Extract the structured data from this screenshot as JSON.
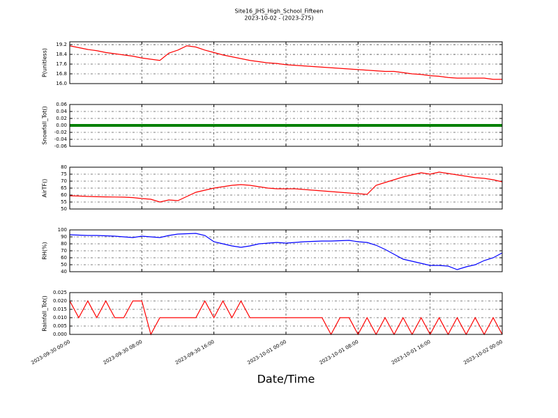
{
  "title": "Site16_JHS_High_School_Fifteen",
  "subtitle": "2023-10-02 - (2023-275)",
  "xlabel": "Date/Time",
  "chart_data": [
    {
      "type": "line",
      "ylabel": "P(unitless)",
      "ylim": [
        16.0,
        19.43
      ],
      "yticks": [
        {
          "value": 16,
          "label": "16.0"
        },
        {
          "value": 16.8,
          "label": "16.8"
        },
        {
          "value": 17.6,
          "label": "17.6"
        },
        {
          "value": 18.4,
          "label": "18.4"
        },
        {
          "value": 19.2,
          "label": "19.2"
        }
      ],
      "grid": true,
      "xlim": [
        "2023-09-30 00:00",
        "2023-10-02 00:00"
      ],
      "xticks": [
        "2023-09-30 00:00",
        "2023-09-30 08:00",
        "2023-09-30 16:00",
        "2023-10-01 00:00",
        "2023-10-01 08:00",
        "2023-10-01 16:00",
        "2023-10-02 00:00"
      ],
      "x": [
        "2023-09-30 00:00",
        "2023-09-30 01:00",
        "2023-09-30 02:00",
        "2023-09-30 03:00",
        "2023-09-30 04:00",
        "2023-09-30 05:00",
        "2023-09-30 06:00",
        "2023-09-30 07:00",
        "2023-09-30 08:00",
        "2023-09-30 09:00",
        "2023-09-30 10:00",
        "2023-09-30 11:00",
        "2023-09-30 12:00",
        "2023-09-30 13:00",
        "2023-09-30 14:00",
        "2023-09-30 15:00",
        "2023-09-30 16:00",
        "2023-09-30 17:00",
        "2023-09-30 18:00",
        "2023-09-30 19:00",
        "2023-09-30 20:00",
        "2023-09-30 21:00",
        "2023-09-30 22:00",
        "2023-09-30 23:00",
        "2023-10-01 00:00",
        "2023-10-01 01:00",
        "2023-10-01 02:00",
        "2023-10-01 03:00",
        "2023-10-01 04:00",
        "2023-10-01 05:00",
        "2023-10-01 06:00",
        "2023-10-01 07:00",
        "2023-10-01 08:00",
        "2023-10-01 09:00",
        "2023-10-01 10:00",
        "2023-10-01 11:00",
        "2023-10-01 12:00",
        "2023-10-01 13:00",
        "2023-10-01 14:00",
        "2023-10-01 15:00",
        "2023-10-01 16:00",
        "2023-10-01 17:00",
        "2023-10-01 18:00",
        "2023-10-01 19:00",
        "2023-10-01 20:00",
        "2023-10-01 21:00",
        "2023-10-01 22:00",
        "2023-10-01 23:00",
        "2023-10-02 00:00"
      ],
      "series": [
        {
          "color": "#ff0000",
          "values": [
            19.1,
            18.95,
            18.8,
            18.7,
            18.55,
            18.45,
            18.35,
            18.25,
            18.1,
            18.0,
            17.9,
            18.5,
            18.75,
            19.1,
            19.0,
            18.75,
            18.55,
            18.35,
            18.2,
            18.05,
            17.9,
            17.8,
            17.7,
            17.65,
            17.55,
            17.5,
            17.45,
            17.4,
            17.35,
            17.3,
            17.25,
            17.2,
            17.15,
            17.1,
            17.05,
            17.0,
            17.0,
            16.9,
            16.8,
            16.75,
            16.65,
            16.6,
            16.5,
            16.45,
            16.45,
            16.45,
            16.45,
            16.35,
            16.35
          ]
        }
      ]
    },
    {
      "type": "line",
      "ylabel": "Snowfall_Tot()",
      "ylim": [
        -0.06,
        0.06
      ],
      "yticks": [
        -0.06,
        -0.04,
        -0.02,
        {
          "value": 0,
          "label": "0.00"
        },
        0.02,
        0.04,
        0.06
      ],
      "grid": true,
      "xlim": [
        "2023-09-30 00:00",
        "2023-10-02 00:00"
      ],
      "xticks": [
        "2023-09-30 00:00",
        "2023-09-30 08:00",
        "2023-09-30 16:00",
        "2023-10-01 00:00",
        "2023-10-01 08:00",
        "2023-10-01 16:00",
        "2023-10-02 00:00"
      ],
      "x": [
        "2023-09-30 00:00",
        "2023-09-30 01:00",
        "2023-09-30 02:00",
        "2023-09-30 03:00",
        "2023-09-30 04:00",
        "2023-09-30 05:00",
        "2023-09-30 06:00",
        "2023-09-30 07:00",
        "2023-09-30 08:00",
        "2023-09-30 09:00",
        "2023-09-30 10:00",
        "2023-09-30 11:00",
        "2023-09-30 12:00",
        "2023-09-30 13:00",
        "2023-09-30 14:00",
        "2023-09-30 15:00",
        "2023-09-30 16:00",
        "2023-09-30 17:00",
        "2023-09-30 18:00",
        "2023-09-30 19:00",
        "2023-09-30 20:00",
        "2023-09-30 21:00",
        "2023-09-30 22:00",
        "2023-09-30 23:00",
        "2023-10-01 00:00",
        "2023-10-01 01:00",
        "2023-10-01 02:00",
        "2023-10-01 03:00",
        "2023-10-01 04:00",
        "2023-10-01 05:00",
        "2023-10-01 06:00",
        "2023-10-01 07:00",
        "2023-10-01 08:00",
        "2023-10-01 09:00",
        "2023-10-01 10:00",
        "2023-10-01 11:00",
        "2023-10-01 12:00",
        "2023-10-01 13:00",
        "2023-10-01 14:00",
        "2023-10-01 15:00",
        "2023-10-01 16:00",
        "2023-10-01 17:00",
        "2023-10-01 18:00",
        "2023-10-01 19:00",
        "2023-10-01 20:00",
        "2023-10-01 21:00",
        "2023-10-01 22:00",
        "2023-10-01 23:00",
        "2023-10-02 00:00"
      ],
      "series": [
        {
          "color": "#008000",
          "values": [
            0,
            0,
            0,
            0,
            0,
            0,
            0,
            0,
            0,
            0,
            0,
            0,
            0,
            0,
            0,
            0,
            0,
            0,
            0,
            0,
            0,
            0,
            0,
            0,
            0,
            0,
            0,
            0,
            0,
            0,
            0,
            0,
            0,
            0,
            0,
            0,
            0,
            0,
            0,
            0,
            0,
            0,
            0,
            0,
            0,
            0,
            0,
            0,
            0
          ]
        }
      ]
    },
    {
      "type": "line",
      "ylabel": "AirTF()",
      "ylim": [
        50,
        80
      ],
      "yticks": [
        50,
        55,
        60,
        65,
        70,
        75,
        80
      ],
      "grid": true,
      "xlim": [
        "2023-09-30 00:00",
        "2023-10-02 00:00"
      ],
      "xticks": [
        "2023-09-30 00:00",
        "2023-09-30 08:00",
        "2023-09-30 16:00",
        "2023-10-01 00:00",
        "2023-10-01 08:00",
        "2023-10-01 16:00",
        "2023-10-02 00:00"
      ],
      "x": [
        "2023-09-30 00:00",
        "2023-09-30 01:00",
        "2023-09-30 02:00",
        "2023-09-30 03:00",
        "2023-09-30 04:00",
        "2023-09-30 05:00",
        "2023-09-30 06:00",
        "2023-09-30 07:00",
        "2023-09-30 08:00",
        "2023-09-30 09:00",
        "2023-09-30 10:00",
        "2023-09-30 11:00",
        "2023-09-30 12:00",
        "2023-09-30 13:00",
        "2023-09-30 14:00",
        "2023-09-30 15:00",
        "2023-09-30 16:00",
        "2023-09-30 17:00",
        "2023-09-30 18:00",
        "2023-09-30 19:00",
        "2023-09-30 20:00",
        "2023-09-30 21:00",
        "2023-09-30 22:00",
        "2023-09-30 23:00",
        "2023-10-01 00:00",
        "2023-10-01 01:00",
        "2023-10-01 02:00",
        "2023-10-01 03:00",
        "2023-10-01 04:00",
        "2023-10-01 05:00",
        "2023-10-01 06:00",
        "2023-10-01 07:00",
        "2023-10-01 08:00",
        "2023-10-01 09:00",
        "2023-10-01 10:00",
        "2023-10-01 11:00",
        "2023-10-01 12:00",
        "2023-10-01 13:00",
        "2023-10-01 14:00",
        "2023-10-01 15:00",
        "2023-10-01 16:00",
        "2023-10-01 17:00",
        "2023-10-01 18:00",
        "2023-10-01 19:00",
        "2023-10-01 20:00",
        "2023-10-01 21:00",
        "2023-10-01 22:00",
        "2023-10-01 23:00",
        "2023-10-02 00:00"
      ],
      "series": [
        {
          "color": "#ff0000",
          "values": [
            59.5,
            59.3,
            59,
            58.8,
            58.7,
            58.6,
            58.5,
            58.2,
            57.5,
            57,
            55,
            56.5,
            56,
            59,
            62,
            63.5,
            65,
            66,
            67,
            67.5,
            67,
            66,
            65,
            64.5,
            64.5,
            64.5,
            64,
            63.5,
            63,
            62.5,
            62,
            61.5,
            61,
            60.5,
            67,
            69,
            71,
            73,
            74.5,
            76,
            75,
            76.5,
            75.5,
            74.5,
            73.5,
            72.5,
            72,
            71,
            69.5
          ]
        }
      ]
    },
    {
      "type": "line",
      "ylabel": "RH(%)",
      "ylim": [
        40,
        100
      ],
      "yticks": [
        40,
        50,
        60,
        70,
        80,
        90,
        100
      ],
      "grid": true,
      "xlim": [
        "2023-09-30 00:00",
        "2023-10-02 00:00"
      ],
      "xticks": [
        "2023-09-30 00:00",
        "2023-09-30 08:00",
        "2023-09-30 16:00",
        "2023-10-01 00:00",
        "2023-10-01 08:00",
        "2023-10-01 16:00",
        "2023-10-02 00:00"
      ],
      "x": [
        "2023-09-30 00:00",
        "2023-09-30 01:00",
        "2023-09-30 02:00",
        "2023-09-30 03:00",
        "2023-09-30 04:00",
        "2023-09-30 05:00",
        "2023-09-30 06:00",
        "2023-09-30 07:00",
        "2023-09-30 08:00",
        "2023-09-30 09:00",
        "2023-09-30 10:00",
        "2023-09-30 11:00",
        "2023-09-30 12:00",
        "2023-09-30 13:00",
        "2023-09-30 14:00",
        "2023-09-30 15:00",
        "2023-09-30 16:00",
        "2023-09-30 17:00",
        "2023-09-30 18:00",
        "2023-09-30 19:00",
        "2023-09-30 20:00",
        "2023-09-30 21:00",
        "2023-09-30 22:00",
        "2023-09-30 23:00",
        "2023-10-01 00:00",
        "2023-10-01 01:00",
        "2023-10-01 02:00",
        "2023-10-01 03:00",
        "2023-10-01 04:00",
        "2023-10-01 05:00",
        "2023-10-01 06:00",
        "2023-10-01 07:00",
        "2023-10-01 08:00",
        "2023-10-01 09:00",
        "2023-10-01 10:00",
        "2023-10-01 11:00",
        "2023-10-01 12:00",
        "2023-10-01 13:00",
        "2023-10-01 14:00",
        "2023-10-01 15:00",
        "2023-10-01 16:00",
        "2023-10-01 17:00",
        "2023-10-01 18:00",
        "2023-10-01 19:00",
        "2023-10-01 20:00",
        "2023-10-01 21:00",
        "2023-10-01 22:00",
        "2023-10-01 23:00",
        "2023-10-02 00:00"
      ],
      "series": [
        {
          "color": "#0000ff",
          "values": [
            93,
            92.5,
            92,
            92,
            91.5,
            91,
            90,
            89,
            91,
            90,
            89,
            92,
            94,
            94.5,
            95,
            92,
            83,
            80,
            77,
            75,
            77,
            80,
            81,
            82,
            81,
            82,
            83,
            83.5,
            84,
            84,
            84.5,
            85,
            83,
            82,
            78,
            72,
            65,
            58,
            55,
            52,
            49,
            49,
            48,
            43,
            47,
            50,
            56,
            60,
            67
          ]
        }
      ]
    },
    {
      "type": "line",
      "ylabel": "Rainfall_Tot()",
      "ylim": [
        0,
        0.025
      ],
      "yticks": [
        {
          "value": 0,
          "label": "0.000"
        },
        {
          "value": 0.005,
          "label": "0.005"
        },
        {
          "value": 0.01,
          "label": "0.010"
        },
        {
          "value": 0.015,
          "label": "0.015"
        },
        {
          "value": 0.02,
          "label": "0.020"
        },
        {
          "value": 0.025,
          "label": "0.025"
        }
      ],
      "grid": true,
      "xlim": [
        "2023-09-30 00:00",
        "2023-10-02 00:00"
      ],
      "xticks": [
        "2023-09-30 00:00",
        "2023-09-30 08:00",
        "2023-09-30 16:00",
        "2023-10-01 00:00",
        "2023-10-01 08:00",
        "2023-10-01 16:00",
        "2023-10-02 00:00"
      ],
      "x": [
        "2023-09-30 00:00",
        "2023-09-30 01:00",
        "2023-09-30 02:00",
        "2023-09-30 03:00",
        "2023-09-30 04:00",
        "2023-09-30 05:00",
        "2023-09-30 06:00",
        "2023-09-30 07:00",
        "2023-09-30 08:00",
        "2023-09-30 09:00",
        "2023-09-30 10:00",
        "2023-09-30 11:00",
        "2023-09-30 12:00",
        "2023-09-30 13:00",
        "2023-09-30 14:00",
        "2023-09-30 15:00",
        "2023-09-30 16:00",
        "2023-09-30 17:00",
        "2023-09-30 18:00",
        "2023-09-30 19:00",
        "2023-09-30 20:00",
        "2023-09-30 21:00",
        "2023-09-30 22:00",
        "2023-09-30 23:00",
        "2023-10-01 00:00",
        "2023-10-01 01:00",
        "2023-10-01 02:00",
        "2023-10-01 03:00",
        "2023-10-01 04:00",
        "2023-10-01 05:00",
        "2023-10-01 06:00",
        "2023-10-01 07:00",
        "2023-10-01 08:00",
        "2023-10-01 09:00",
        "2023-10-01 10:00",
        "2023-10-01 11:00",
        "2023-10-01 12:00",
        "2023-10-01 13:00",
        "2023-10-01 14:00",
        "2023-10-01 15:00",
        "2023-10-01 16:00",
        "2023-10-01 17:00",
        "2023-10-01 18:00",
        "2023-10-01 19:00",
        "2023-10-01 20:00",
        "2023-10-01 21:00",
        "2023-10-01 22:00",
        "2023-10-01 23:00",
        "2023-10-02 00:00"
      ],
      "series": [
        {
          "color": "#ff0000",
          "values": [
            0.02,
            0.01,
            0.02,
            0.01,
            0.02,
            0.01,
            0.01,
            0.02,
            0.02,
            0,
            0.01,
            0.01,
            0.01,
            0.01,
            0.01,
            0.02,
            0.01,
            0.02,
            0.01,
            0.02,
            0.01,
            0.01,
            0.01,
            0.01,
            0.01,
            0.01,
            0.01,
            0.01,
            0.01,
            0,
            0.01,
            0.01,
            0,
            0.01,
            0,
            0.01,
            0,
            0.01,
            0,
            0.01,
            0,
            0.01,
            0,
            0.01,
            0,
            0.01,
            0,
            0.01,
            0
          ]
        }
      ]
    }
  ]
}
